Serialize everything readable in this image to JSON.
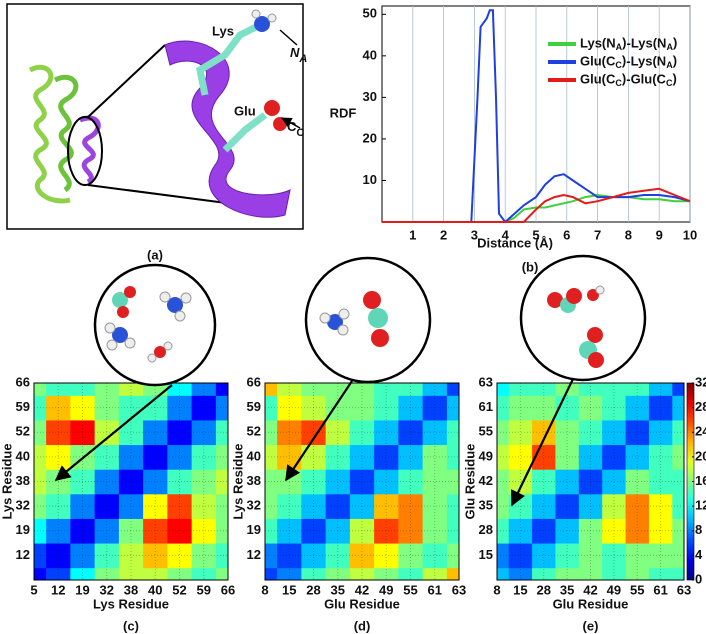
{
  "figure": {
    "panel_a": {
      "panel_label": "(a)",
      "lys": "Lys",
      "glu": "Glu",
      "na": {
        "main": "N",
        "sub": "A"
      },
      "cc": {
        "main": "C",
        "sub": "C"
      }
    }
  },
  "chart_data": [
    {
      "type": "line",
      "panel_label": "(b)",
      "ylabel": "RDF",
      "xlabel": "Distance (Å)",
      "x": [
        0,
        2.9,
        3.1,
        3.2,
        3.4,
        3.5,
        3.6,
        3.7,
        3.8,
        4,
        4.3,
        4.6,
        5,
        5.3,
        5.6,
        5.9,
        6.2,
        6.6,
        7,
        7.5,
        8,
        8.5,
        9,
        9.5,
        10
      ],
      "series": [
        {
          "name": "Lys(NA)-Lys(NA)",
          "color": "#3cd23c",
          "values": [
            0,
            0,
            0,
            0,
            0,
            0,
            0,
            0,
            0,
            0,
            1,
            3,
            3.5,
            3.5,
            4,
            4.5,
            5,
            6,
            6.5,
            6,
            6,
            5.5,
            5.5,
            5,
            5
          ]
        },
        {
          "name": "Glu(CC)-Lys(NA)",
          "color": "#1f3fe0",
          "values": [
            0,
            0,
            30,
            47,
            49,
            51,
            51,
            30,
            2,
            0,
            2,
            4,
            6,
            9,
            11,
            11.5,
            10,
            8,
            6,
            6,
            6,
            6.5,
            6.5,
            6,
            5
          ]
        },
        {
          "name": "Glu(CC)-Glu(CC)",
          "color": "#e21b1b",
          "values": [
            0,
            0,
            0,
            0,
            0,
            0,
            0,
            0,
            0,
            0,
            0,
            0,
            3,
            5,
            6,
            6.5,
            6,
            4.5,
            5,
            6,
            7,
            7.5,
            8,
            6.5,
            5
          ]
        }
      ],
      "xlim": [
        0,
        10
      ],
      "xticks": [
        1,
        2,
        3,
        4,
        5,
        6,
        7,
        8,
        9,
        10
      ],
      "ylim": [
        0,
        52
      ],
      "yticks": [
        10,
        20,
        30,
        40,
        50
      ],
      "grid": "x",
      "legend": "top-right"
    },
    {
      "type": "heatmap",
      "panel_label": "(c)",
      "xlabel": "Lys Residue",
      "ylabel": "Lys Residue",
      "colormap": "jet",
      "clim": [
        0,
        32
      ],
      "x_categories": [
        "5",
        "12",
        "19",
        "32",
        "38",
        "40",
        "52",
        "59",
        "66"
      ],
      "y_categories": [
        null,
        "12",
        "19",
        "32",
        "38",
        "40",
        "52",
        "59",
        "66"
      ],
      "values": [
        [
          4,
          6,
          12,
          16,
          18,
          18,
          16,
          14,
          16
        ],
        [
          6,
          4,
          8,
          14,
          18,
          22,
          20,
          16,
          14
        ],
        [
          12,
          8,
          4,
          8,
          16,
          26,
          28,
          20,
          16
        ],
        [
          16,
          14,
          8,
          4,
          8,
          20,
          26,
          18,
          16
        ],
        [
          18,
          16,
          14,
          8,
          4,
          8,
          14,
          16,
          18
        ],
        [
          18,
          20,
          16,
          14,
          8,
          4,
          8,
          14,
          16
        ],
        [
          16,
          26,
          28,
          18,
          14,
          8,
          4,
          8,
          14
        ],
        [
          14,
          22,
          20,
          16,
          14,
          14,
          8,
          4,
          8
        ],
        [
          16,
          14,
          14,
          16,
          18,
          16,
          12,
          8,
          4
        ]
      ]
    },
    {
      "type": "heatmap",
      "panel_label": "(d)",
      "xlabel": "Glu Residue",
      "ylabel": "Lys Residue",
      "colormap": "jet",
      "clim": [
        0,
        32
      ],
      "x_categories": [
        "8",
        "15",
        "28",
        "35",
        "42",
        "49",
        "55",
        "61",
        "63"
      ],
      "y_categories": [
        null,
        "12",
        "19",
        "32",
        "38",
        "40",
        "52",
        "59",
        "66"
      ],
      "values": [
        [
          6,
          8,
          14,
          16,
          18,
          16,
          14,
          18,
          22
        ],
        [
          8,
          6,
          10,
          14,
          22,
          20,
          16,
          14,
          16
        ],
        [
          14,
          10,
          6,
          10,
          18,
          26,
          24,
          16,
          14
        ],
        [
          16,
          14,
          10,
          6,
          10,
          22,
          24,
          16,
          14
        ],
        [
          16,
          16,
          14,
          10,
          6,
          10,
          14,
          16,
          16
        ],
        [
          18,
          22,
          18,
          14,
          10,
          6,
          10,
          16,
          14
        ],
        [
          16,
          24,
          26,
          18,
          14,
          10,
          6,
          10,
          14
        ],
        [
          14,
          20,
          18,
          16,
          16,
          14,
          10,
          6,
          10
        ],
        [
          22,
          18,
          16,
          16,
          16,
          14,
          14,
          10,
          6
        ]
      ]
    },
    {
      "type": "heatmap",
      "panel_label": "(e)",
      "xlabel": "Glu Residue",
      "ylabel": "Glu Residue",
      "colormap": "jet",
      "clim": [
        0,
        32
      ],
      "colorbar": true,
      "cticks": [
        0,
        4,
        8,
        12,
        16,
        20,
        24,
        28,
        32
      ],
      "x_categories": [
        "8",
        "15",
        "28",
        "35",
        "42",
        "49",
        "55",
        "61",
        "63"
      ],
      "y_categories": [
        null,
        "15",
        "28",
        "35",
        "42",
        "49",
        "55",
        "61",
        "63"
      ],
      "values": [
        [
          10,
          8,
          14,
          16,
          16,
          14,
          16,
          14,
          14
        ],
        [
          8,
          6,
          10,
          14,
          16,
          14,
          16,
          16,
          16
        ],
        [
          14,
          10,
          6,
          10,
          16,
          20,
          24,
          20,
          16
        ],
        [
          16,
          14,
          10,
          6,
          10,
          18,
          24,
          20,
          14
        ],
        [
          16,
          18,
          14,
          10,
          6,
          10,
          16,
          14,
          14
        ],
        [
          18,
          20,
          26,
          16,
          10,
          6,
          10,
          14,
          16
        ],
        [
          16,
          18,
          22,
          16,
          14,
          10,
          6,
          10,
          14
        ],
        [
          14,
          16,
          16,
          14,
          16,
          14,
          10,
          6,
          10
        ],
        [
          12,
          14,
          14,
          16,
          14,
          14,
          14,
          10,
          6
        ]
      ]
    }
  ]
}
